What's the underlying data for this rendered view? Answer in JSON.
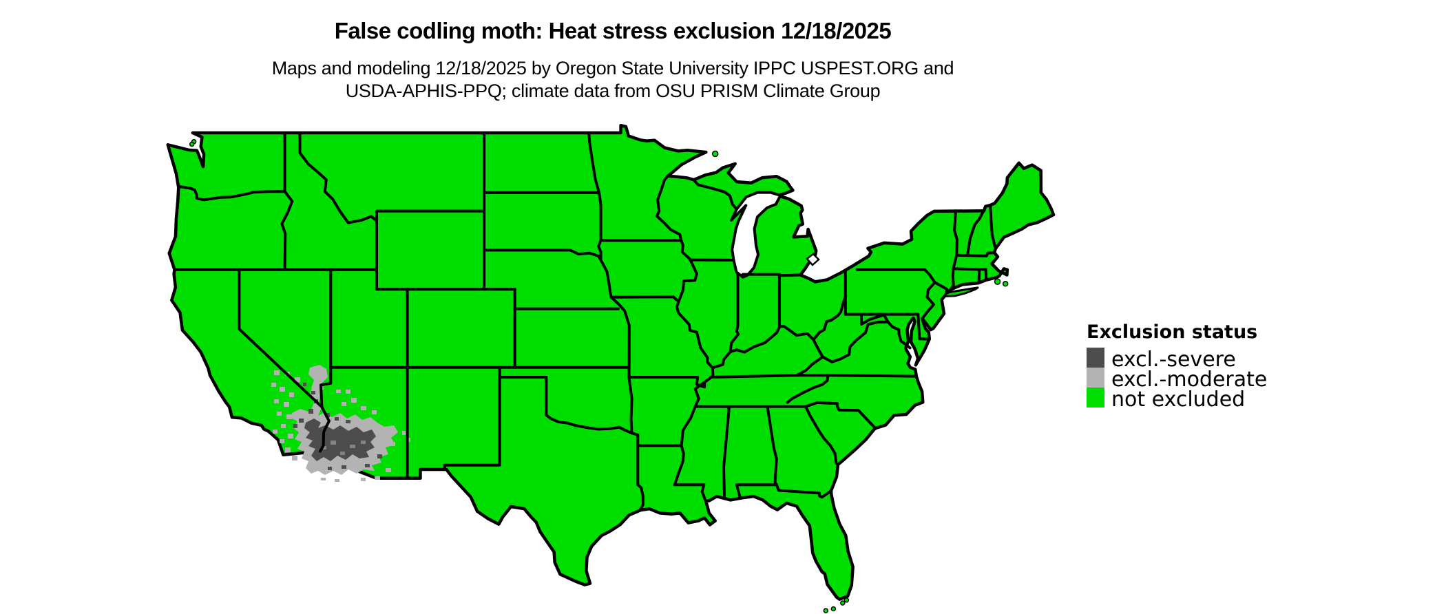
{
  "title": "False codling moth: Heat stress exclusion 12/18/2025",
  "subtitle_line1": "Maps and modeling 12/18/2025 by Oregon State University IPPC USPEST.ORG and",
  "subtitle_line2": "USDA-APHIS-PPQ; climate data from OSU PRISM Climate Group",
  "legend": {
    "title": "Exclusion status",
    "items": [
      {
        "label": "excl.-severe",
        "color": "#4d4d4d"
      },
      {
        "label": "excl.-moderate",
        "color": "#b3b3b3"
      },
      {
        "label": "not excluded",
        "color": "#00de00"
      }
    ]
  },
  "map": {
    "region": "Continental United States",
    "land_status": "not excluded",
    "gray_region_note": "excluded pixels in SE California / SW Arizona desert",
    "border_color": "#000000",
    "background_color": "#ffffff"
  }
}
